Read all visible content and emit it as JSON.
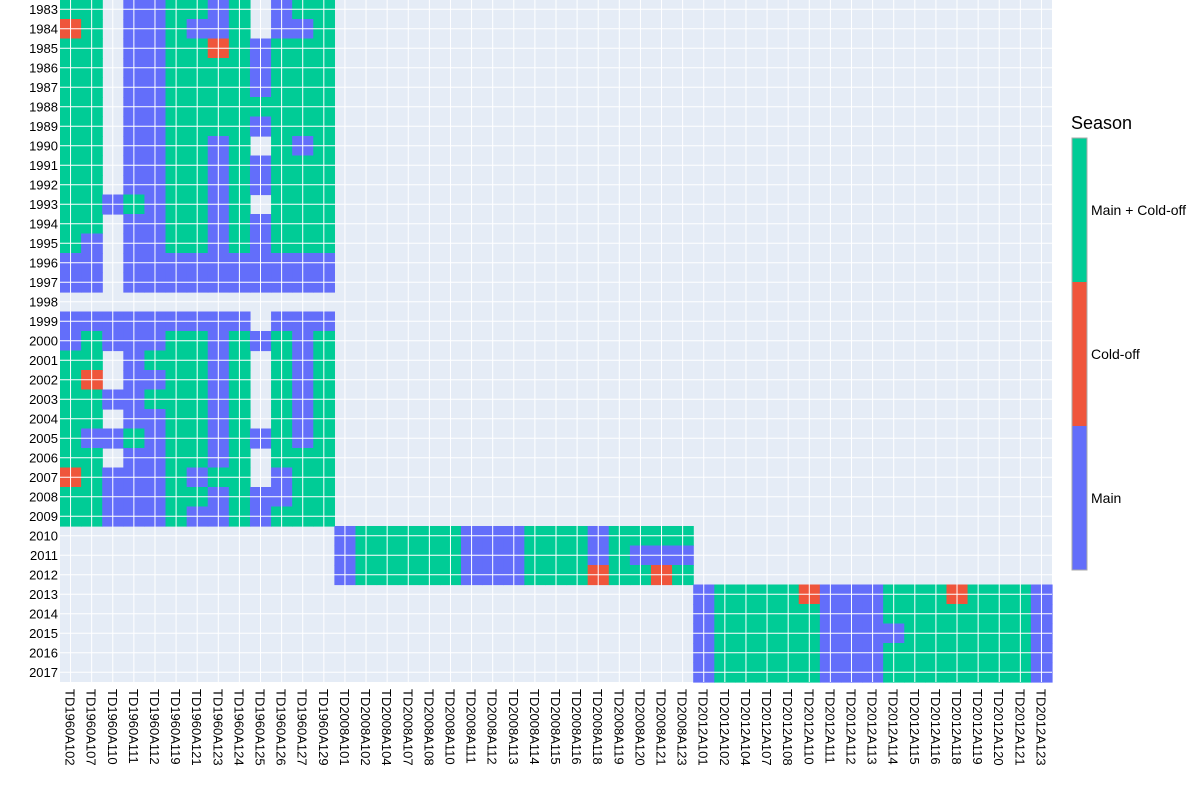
{
  "chart_data": {
    "type": "heatmap",
    "title": "",
    "xlabel": "",
    "ylabel": "",
    "grid": true,
    "legend_placement": "right",
    "x": [
      "TD1960A102",
      "TD1960A107",
      "TD1960A110",
      "TD1960A111",
      "TD1960A112",
      "TD1960A119",
      "TD1960A121",
      "TD1960A123",
      "TD1960A124",
      "TD1960A125",
      "TD1960A126",
      "TD1960A127",
      "TD1960A129",
      "TD2008A101",
      "TD2008A102",
      "TD2008A104",
      "TD2008A107",
      "TD2008A108",
      "TD2008A110",
      "TD2008A111",
      "TD2008A112",
      "TD2008A113",
      "TD2008A114",
      "TD2008A115",
      "TD2008A116",
      "TD2008A118",
      "TD2008A119",
      "TD2008A120",
      "TD2008A121",
      "TD2008A123",
      "TD2012A101",
      "TD2012A102",
      "TD2012A104",
      "TD2012A107",
      "TD2012A108",
      "TD2012A110",
      "TD2012A111",
      "TD2012A112",
      "TD2012A113",
      "TD2012A114",
      "TD2012A115",
      "TD2012A116",
      "TD2012A118",
      "TD2012A119",
      "TD2012A120",
      "TD2012A121",
      "TD2012A123"
    ],
    "y": [
      "1983",
      "1984",
      "1985",
      "1986",
      "1987",
      "1988",
      "1989",
      "1990",
      "1991",
      "1992",
      "1993",
      "1994",
      "1995",
      "1996",
      "1997",
      "1998",
      "1999",
      "2000",
      "2001",
      "2002",
      "2003",
      "2004",
      "2005",
      "2006",
      "2007",
      "2008",
      "2009",
      "2010",
      "2011",
      "2012",
      "2013",
      "2014",
      "2015",
      "2016",
      "2017"
    ],
    "category_codes": {
      "M": "Main",
      "C": "Cold-off",
      "B": "Main + Cold-off",
      ".": "no data"
    },
    "rows": [
      "BB.MMBBMB.MBB..................................",
      "CB.MMBMMB.MMB..................................",
      "BB.MMBBCBMBBB..................................",
      "BB.MMBBBBMBBB..................................",
      "BB.MMBBBBMBBB..................................",
      "BB.MMBBBBBBBB..................................",
      "BB.MMBBBBMBBB..................................",
      "BB.MMBBMB.BMB..................................",
      "BB.MMBBMBMBBB..................................",
      "BB.MMBBMBMBBB..................................",
      "BBMBMBBMB.BBB..................................",
      "BB.MMBBMBMBBB..................................",
      "BM.MMBBMBMBBB..................................",
      "MM.MMMMMMMMMM..................................",
      "MM.MMMMMMMMMM..................................",
      "...............................................",
      "MMMMMMMMM.MMM..................................",
      "MBMMMBBMBMBMB..................................",
      "BB.MBBBMB.BMB..................................",
      "BC.MMBBMB.BMB..................................",
      "BBMMBBBMB.BMB..................................",
      "BB.MMBBMB.BMB..................................",
      "BMMBMBBMBMBMB..................................",
      "BB.MMBBMB.BBB..................................",
      "CBMMMBMBB.MBB..................................",
      "BBMMMBBMBMMBB..................................",
      "BBMMMBMMBMBBB..................................",
      ".............MBBBBBMMMBBBMBBBB.................",
      ".............MBBBBBMMMBBBMBMMM.................",
      ".............MBBBBBMMMBBBCBBCB.................",
      "..............................MBBBBCMMMBBBCBBBM",
      "..............................MBBBBBMMMBBBBBBBM",
      "..............................MBBBBBMMMMBBBBBBM",
      "..............................MBBBBBMMMBBBBBBBM",
      "..............................MBBBBBMMMBBBBBBBM"
    ],
    "colorbar": {
      "title": "Season",
      "labels": [
        "Main + Cold-off",
        "Cold-off",
        "Main"
      ]
    },
    "colors": {
      "Main": "#636efa",
      "Cold-off": "#ef553b",
      "Main + Cold-off": "#00cc96",
      "plot_background": "#e5ecf6",
      "grid": "#ffffff"
    }
  }
}
